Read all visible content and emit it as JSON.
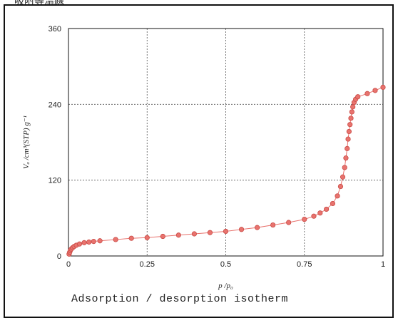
{
  "header_text": "吸附等温線",
  "caption": "Adsorption / desorption isotherm",
  "colors": {
    "series": "#e8736e",
    "marker_edge": "#c94a45",
    "grid": "#555555"
  },
  "chart_data": {
    "type": "scatter",
    "title": "",
    "xlabel": "p /p₀",
    "ylabel": "Vₐ /cm³(STP) g⁻¹",
    "xlim": [
      0,
      1
    ],
    "ylim": [
      0,
      360
    ],
    "xticks": [
      0,
      0.25,
      0.5,
      0.75,
      1
    ],
    "xtick_labels": [
      "0",
      "0.25",
      "0.5",
      "0.75",
      "1"
    ],
    "yticks": [
      0,
      120,
      240,
      360
    ],
    "ytick_labels": [
      "0",
      "120",
      "240",
      "360"
    ],
    "grid": true,
    "series": [
      {
        "x": [
          0.002,
          0.004,
          0.006,
          0.009,
          0.013,
          0.018,
          0.025,
          0.035,
          0.05,
          0.065,
          0.08,
          0.1,
          0.15,
          0.2,
          0.25,
          0.3,
          0.35,
          0.4,
          0.45,
          0.5,
          0.55,
          0.6,
          0.65,
          0.7,
          0.75,
          0.78,
          0.8,
          0.82,
          0.84,
          0.855,
          0.865,
          0.872,
          0.878,
          0.882,
          0.886,
          0.889,
          0.892,
          0.895,
          0.898,
          0.901,
          0.904,
          0.908,
          0.913,
          0.92,
          0.95,
          0.975,
          1.0
        ],
        "y": [
          3,
          6,
          9,
          11,
          13,
          15,
          17,
          19,
          21,
          22,
          23,
          24,
          26,
          28,
          29,
          31,
          33,
          35,
          37,
          39,
          42,
          45,
          49,
          53,
          58,
          63,
          68,
          74,
          83,
          95,
          110,
          125,
          140,
          155,
          170,
          185,
          197,
          208,
          218,
          228,
          236,
          243,
          248,
          252,
          257,
          262,
          267
        ]
      }
    ]
  }
}
